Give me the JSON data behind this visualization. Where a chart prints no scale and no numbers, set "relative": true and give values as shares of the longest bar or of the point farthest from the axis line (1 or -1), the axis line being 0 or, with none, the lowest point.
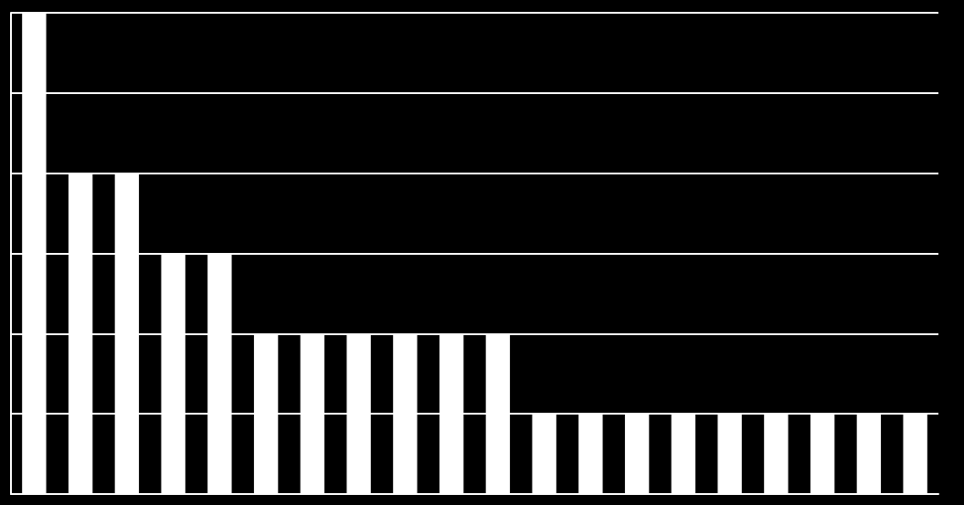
{
  "chart_data": {
    "type": "bar",
    "relative": true,
    "grid": "y",
    "color": "#ffffff",
    "categories": [
      null,
      null,
      null,
      null,
      null,
      null,
      null,
      null,
      null,
      null,
      null,
      null,
      null,
      null,
      null,
      null,
      null,
      null,
      null,
      null
    ],
    "values": [
      1,
      0.6667,
      0.6667,
      0.5,
      0.5,
      0.3333,
      0.3333,
      0.3333,
      0.3333,
      0.3333,
      0.3333,
      0.1667,
      0.1667,
      0.1667,
      0.1667,
      0.1667,
      0.1667,
      0.1667,
      0.1667,
      0.1667
    ]
  }
}
